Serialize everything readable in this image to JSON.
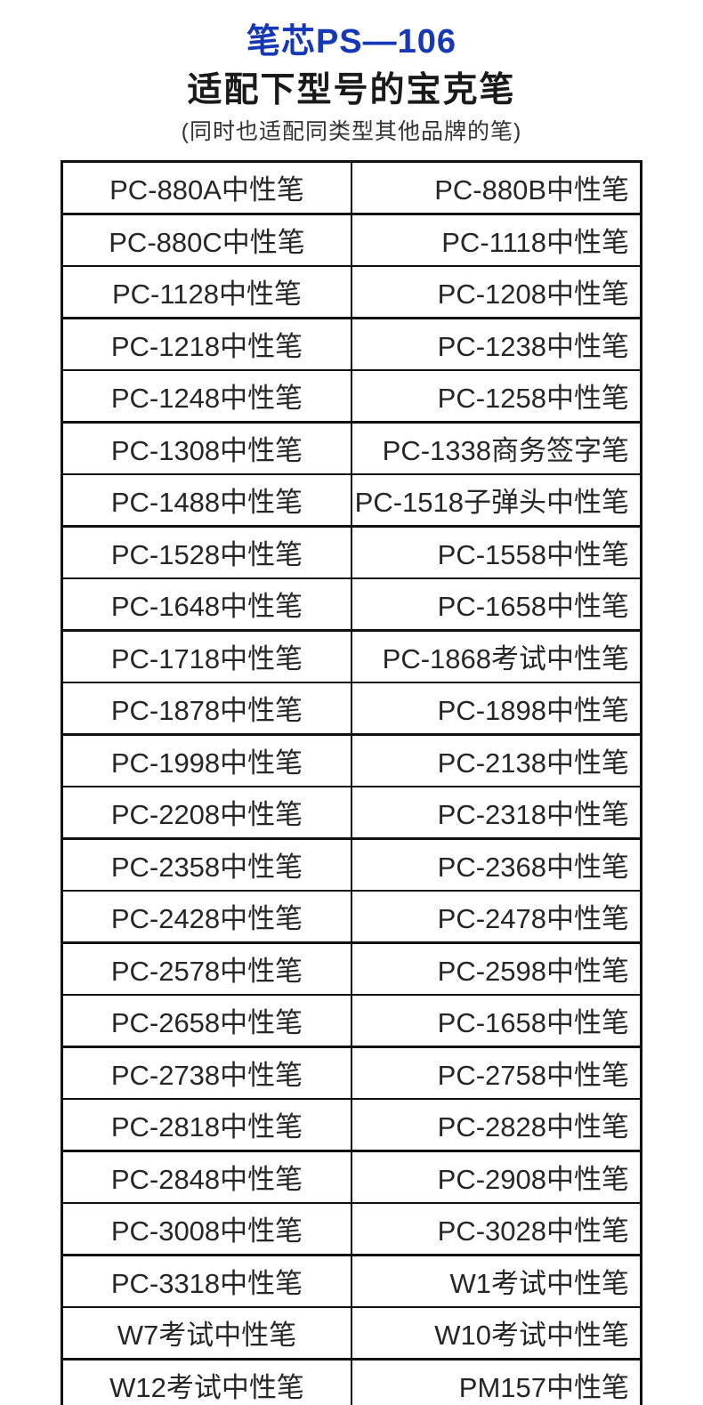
{
  "header": {
    "title": "笔芯PS—106",
    "subtitle": "适配下型号的宝克笔",
    "note": "(同时也适配同类型其他品牌的笔)"
  },
  "colors": {
    "title_blue": "#1637b8",
    "text_dark": "#262626",
    "table_border": "#111111"
  },
  "table": {
    "rows": [
      {
        "left": "PC-880A中性笔",
        "right": "PC-880B中性笔"
      },
      {
        "left": "PC-880C中性笔",
        "right": "PC-1118中性笔"
      },
      {
        "left": "PC-1128中性笔",
        "right": "PC-1208中性笔"
      },
      {
        "left": "PC-1218中性笔",
        "right": "PC-1238中性笔"
      },
      {
        "left": "PC-1248中性笔",
        "right": "PC-1258中性笔"
      },
      {
        "left": "PC-1308中性笔",
        "right": "PC-1338商务签字笔"
      },
      {
        "left": "PC-1488中性笔",
        "right": "PC-1518子弹头中性笔"
      },
      {
        "left": "PC-1528中性笔",
        "right": "PC-1558中性笔"
      },
      {
        "left": "PC-1648中性笔",
        "right": "PC-1658中性笔"
      },
      {
        "left": "PC-1718中性笔",
        "right": "PC-1868考试中性笔"
      },
      {
        "left": "PC-1878中性笔",
        "right": "PC-1898中性笔"
      },
      {
        "left": "PC-1998中性笔",
        "right": "PC-2138中性笔"
      },
      {
        "left": "PC-2208中性笔",
        "right": "PC-2318中性笔"
      },
      {
        "left": "PC-2358中性笔",
        "right": "PC-2368中性笔"
      },
      {
        "left": "PC-2428中性笔",
        "right": "PC-2478中性笔"
      },
      {
        "left": "PC-2578中性笔",
        "right": "PC-2598中性笔"
      },
      {
        "left": "PC-2658中性笔",
        "right": "PC-1658中性笔"
      },
      {
        "left": "PC-2738中性笔",
        "right": "PC-2758中性笔"
      },
      {
        "left": "PC-2818中性笔",
        "right": "PC-2828中性笔"
      },
      {
        "left": "PC-2848中性笔",
        "right": "PC-2908中性笔"
      },
      {
        "left": "PC-3008中性笔",
        "right": "PC-3028中性笔"
      },
      {
        "left": "PC-3318中性笔",
        "right": "W1考试中性笔"
      },
      {
        "left": "W7考试中性笔",
        "right": "W10考试中性笔"
      },
      {
        "left": "W12考试中性笔",
        "right": "PM157中性笔"
      }
    ]
  }
}
